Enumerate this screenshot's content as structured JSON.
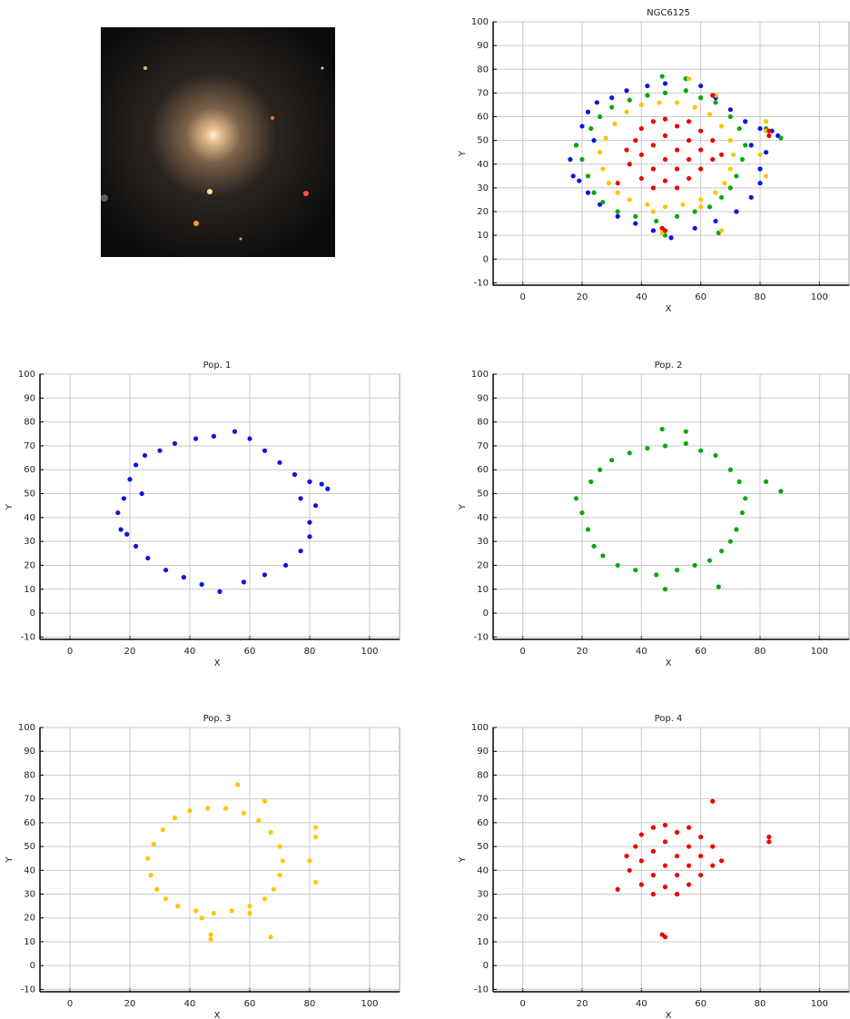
{
  "chart_data": [
    {
      "type": "scatter",
      "title": "NGC6125",
      "x_label": "X",
      "y_label": "Y",
      "xlim": [
        -10,
        110
      ],
      "ylim": [
        -11,
        100
      ],
      "xticks": [
        0,
        20,
        40,
        60,
        80,
        100
      ],
      "yticks": [
        -10,
        0,
        10,
        20,
        30,
        40,
        50,
        60,
        70,
        80,
        90,
        100
      ],
      "grid": true,
      "series": [
        {
          "color": "#0a14e0",
          "x": [
            16,
            17,
            18,
            20,
            22,
            25,
            30,
            35,
            42,
            48,
            55,
            60,
            65,
            70,
            75,
            80,
            84,
            86,
            82,
            80,
            80,
            77,
            72,
            65,
            58,
            50,
            44,
            38,
            32,
            26,
            22,
            19,
            24,
            77
          ],
          "values": [
            42,
            35,
            48,
            56,
            62,
            66,
            68,
            71,
            73,
            74,
            76,
            73,
            68,
            63,
            58,
            55,
            54,
            52,
            45,
            38,
            32,
            26,
            20,
            16,
            13,
            9,
            12,
            15,
            18,
            23,
            28,
            33,
            50,
            48
          ]
        },
        {
          "color": "#0aa80a",
          "x": [
            18,
            20,
            22,
            24,
            27,
            32,
            38,
            45,
            52,
            58,
            63,
            67,
            70,
            72,
            74,
            75,
            73,
            70,
            65,
            60,
            55,
            48,
            42,
            36,
            30,
            26,
            23,
            47,
            55,
            82,
            87,
            48,
            66
          ],
          "values": [
            48,
            42,
            35,
            28,
            24,
            20,
            18,
            16,
            18,
            20,
            22,
            26,
            30,
            35,
            42,
            48,
            55,
            60,
            66,
            68,
            71,
            70,
            69,
            67,
            64,
            60,
            55,
            77,
            76,
            55,
            51,
            10,
            11
          ]
        },
        {
          "color": "#ffc400",
          "x": [
            26,
            27,
            29,
            32,
            36,
            42,
            48,
            54,
            60,
            65,
            68,
            70,
            71,
            70,
            67,
            63,
            58,
            52,
            46,
            40,
            35,
            31,
            28,
            47,
            47,
            67,
            56,
            65,
            82,
            82,
            80,
            82,
            44,
            60
          ],
          "values": [
            45,
            38,
            32,
            28,
            25,
            23,
            22,
            23,
            25,
            28,
            32,
            38,
            44,
            50,
            56,
            61,
            64,
            66,
            66,
            65,
            62,
            57,
            51,
            13,
            11,
            12,
            76,
            69,
            58,
            54,
            44,
            35,
            20,
            22
          ]
        },
        {
          "color": "#ee0000",
          "x": [
            35,
            36,
            38,
            40,
            40,
            40,
            44,
            44,
            44,
            44,
            48,
            48,
            48,
            48,
            52,
            52,
            52,
            52,
            56,
            56,
            56,
            56,
            60,
            60,
            60,
            64,
            64,
            67,
            32,
            47,
            48,
            64,
            83,
            83
          ],
          "values": [
            46,
            40,
            50,
            34,
            44,
            55,
            30,
            38,
            48,
            58,
            33,
            42,
            52,
            59,
            30,
            38,
            46,
            56,
            34,
            42,
            50,
            58,
            38,
            46,
            54,
            42,
            50,
            44,
            32,
            13,
            12,
            69,
            54,
            52
          ]
        }
      ]
    },
    {
      "type": "scatter",
      "title": "Pop. 1",
      "x_label": "X",
      "y_label": "Y",
      "xlim": [
        -10,
        110
      ],
      "ylim": [
        -11,
        100
      ],
      "xticks": [
        0,
        20,
        40,
        60,
        80,
        100
      ],
      "yticks": [
        -10,
        0,
        10,
        20,
        30,
        40,
        50,
        60,
        70,
        80,
        90,
        100
      ],
      "grid": true,
      "series": [
        {
          "color": "#0a14e0",
          "x": [
            16,
            17,
            18,
            20,
            22,
            25,
            30,
            35,
            42,
            48,
            55,
            60,
            65,
            70,
            75,
            80,
            84,
            86,
            82,
            80,
            80,
            77,
            72,
            65,
            58,
            50,
            44,
            38,
            32,
            26,
            22,
            19,
            24,
            77
          ],
          "values": [
            42,
            35,
            48,
            56,
            62,
            66,
            68,
            71,
            73,
            74,
            76,
            73,
            68,
            63,
            58,
            55,
            54,
            52,
            45,
            38,
            32,
            26,
            20,
            16,
            13,
            9,
            12,
            15,
            18,
            23,
            28,
            33,
            50,
            48
          ]
        }
      ]
    },
    {
      "type": "scatter",
      "title": "Pop. 2",
      "x_label": "X",
      "y_label": "Y",
      "xlim": [
        -10,
        110
      ],
      "ylim": [
        -11,
        100
      ],
      "xticks": [
        0,
        20,
        40,
        60,
        80,
        100
      ],
      "yticks": [
        -10,
        0,
        10,
        20,
        30,
        40,
        50,
        60,
        70,
        80,
        90,
        100
      ],
      "grid": true,
      "series": [
        {
          "color": "#0aa80a",
          "x": [
            18,
            20,
            22,
            24,
            27,
            32,
            38,
            45,
            52,
            58,
            63,
            67,
            70,
            72,
            74,
            75,
            73,
            70,
            65,
            60,
            55,
            48,
            42,
            36,
            30,
            26,
            23,
            47,
            55,
            82,
            87,
            48,
            66
          ],
          "values": [
            48,
            42,
            35,
            28,
            24,
            20,
            18,
            16,
            18,
            20,
            22,
            26,
            30,
            35,
            42,
            48,
            55,
            60,
            66,
            68,
            71,
            70,
            69,
            67,
            64,
            60,
            55,
            77,
            76,
            55,
            51,
            10,
            11
          ]
        }
      ]
    },
    {
      "type": "scatter",
      "title": "Pop. 3",
      "x_label": "X",
      "y_label": "Y",
      "xlim": [
        -10,
        110
      ],
      "ylim": [
        -11,
        100
      ],
      "xticks": [
        0,
        20,
        40,
        60,
        80,
        100
      ],
      "yticks": [
        -10,
        0,
        10,
        20,
        30,
        40,
        50,
        60,
        70,
        80,
        90,
        100
      ],
      "grid": true,
      "series": [
        {
          "color": "#ffc400",
          "x": [
            26,
            27,
            29,
            32,
            36,
            42,
            48,
            54,
            60,
            65,
            68,
            70,
            71,
            70,
            67,
            63,
            58,
            52,
            46,
            40,
            35,
            31,
            28,
            47,
            47,
            67,
            56,
            65,
            82,
            82,
            80,
            82,
            44,
            60
          ],
          "values": [
            45,
            38,
            32,
            28,
            25,
            23,
            22,
            23,
            25,
            28,
            32,
            38,
            44,
            50,
            56,
            61,
            64,
            66,
            66,
            65,
            62,
            57,
            51,
            13,
            11,
            12,
            76,
            69,
            58,
            54,
            44,
            35,
            20,
            22
          ]
        }
      ]
    },
    {
      "type": "scatter",
      "title": "Pop. 4",
      "x_label": "X",
      "y_label": "Y",
      "xlim": [
        -10,
        110
      ],
      "ylim": [
        -11,
        100
      ],
      "xticks": [
        0,
        20,
        40,
        60,
        80,
        100
      ],
      "yticks": [
        -10,
        0,
        10,
        20,
        30,
        40,
        50,
        60,
        70,
        80,
        90,
        100
      ],
      "grid": true,
      "series": [
        {
          "color": "#ee0000",
          "x": [
            35,
            36,
            38,
            40,
            40,
            40,
            44,
            44,
            44,
            44,
            48,
            48,
            48,
            48,
            52,
            52,
            52,
            52,
            56,
            56,
            56,
            56,
            60,
            60,
            60,
            64,
            64,
            67,
            32,
            47,
            48,
            64,
            83,
            83
          ],
          "values": [
            46,
            40,
            50,
            34,
            44,
            55,
            30,
            38,
            48,
            58,
            33,
            42,
            52,
            59,
            30,
            38,
            46,
            56,
            34,
            42,
            50,
            58,
            38,
            46,
            54,
            42,
            50,
            44,
            32,
            13,
            12,
            69,
            54,
            52
          ]
        }
      ]
    }
  ]
}
